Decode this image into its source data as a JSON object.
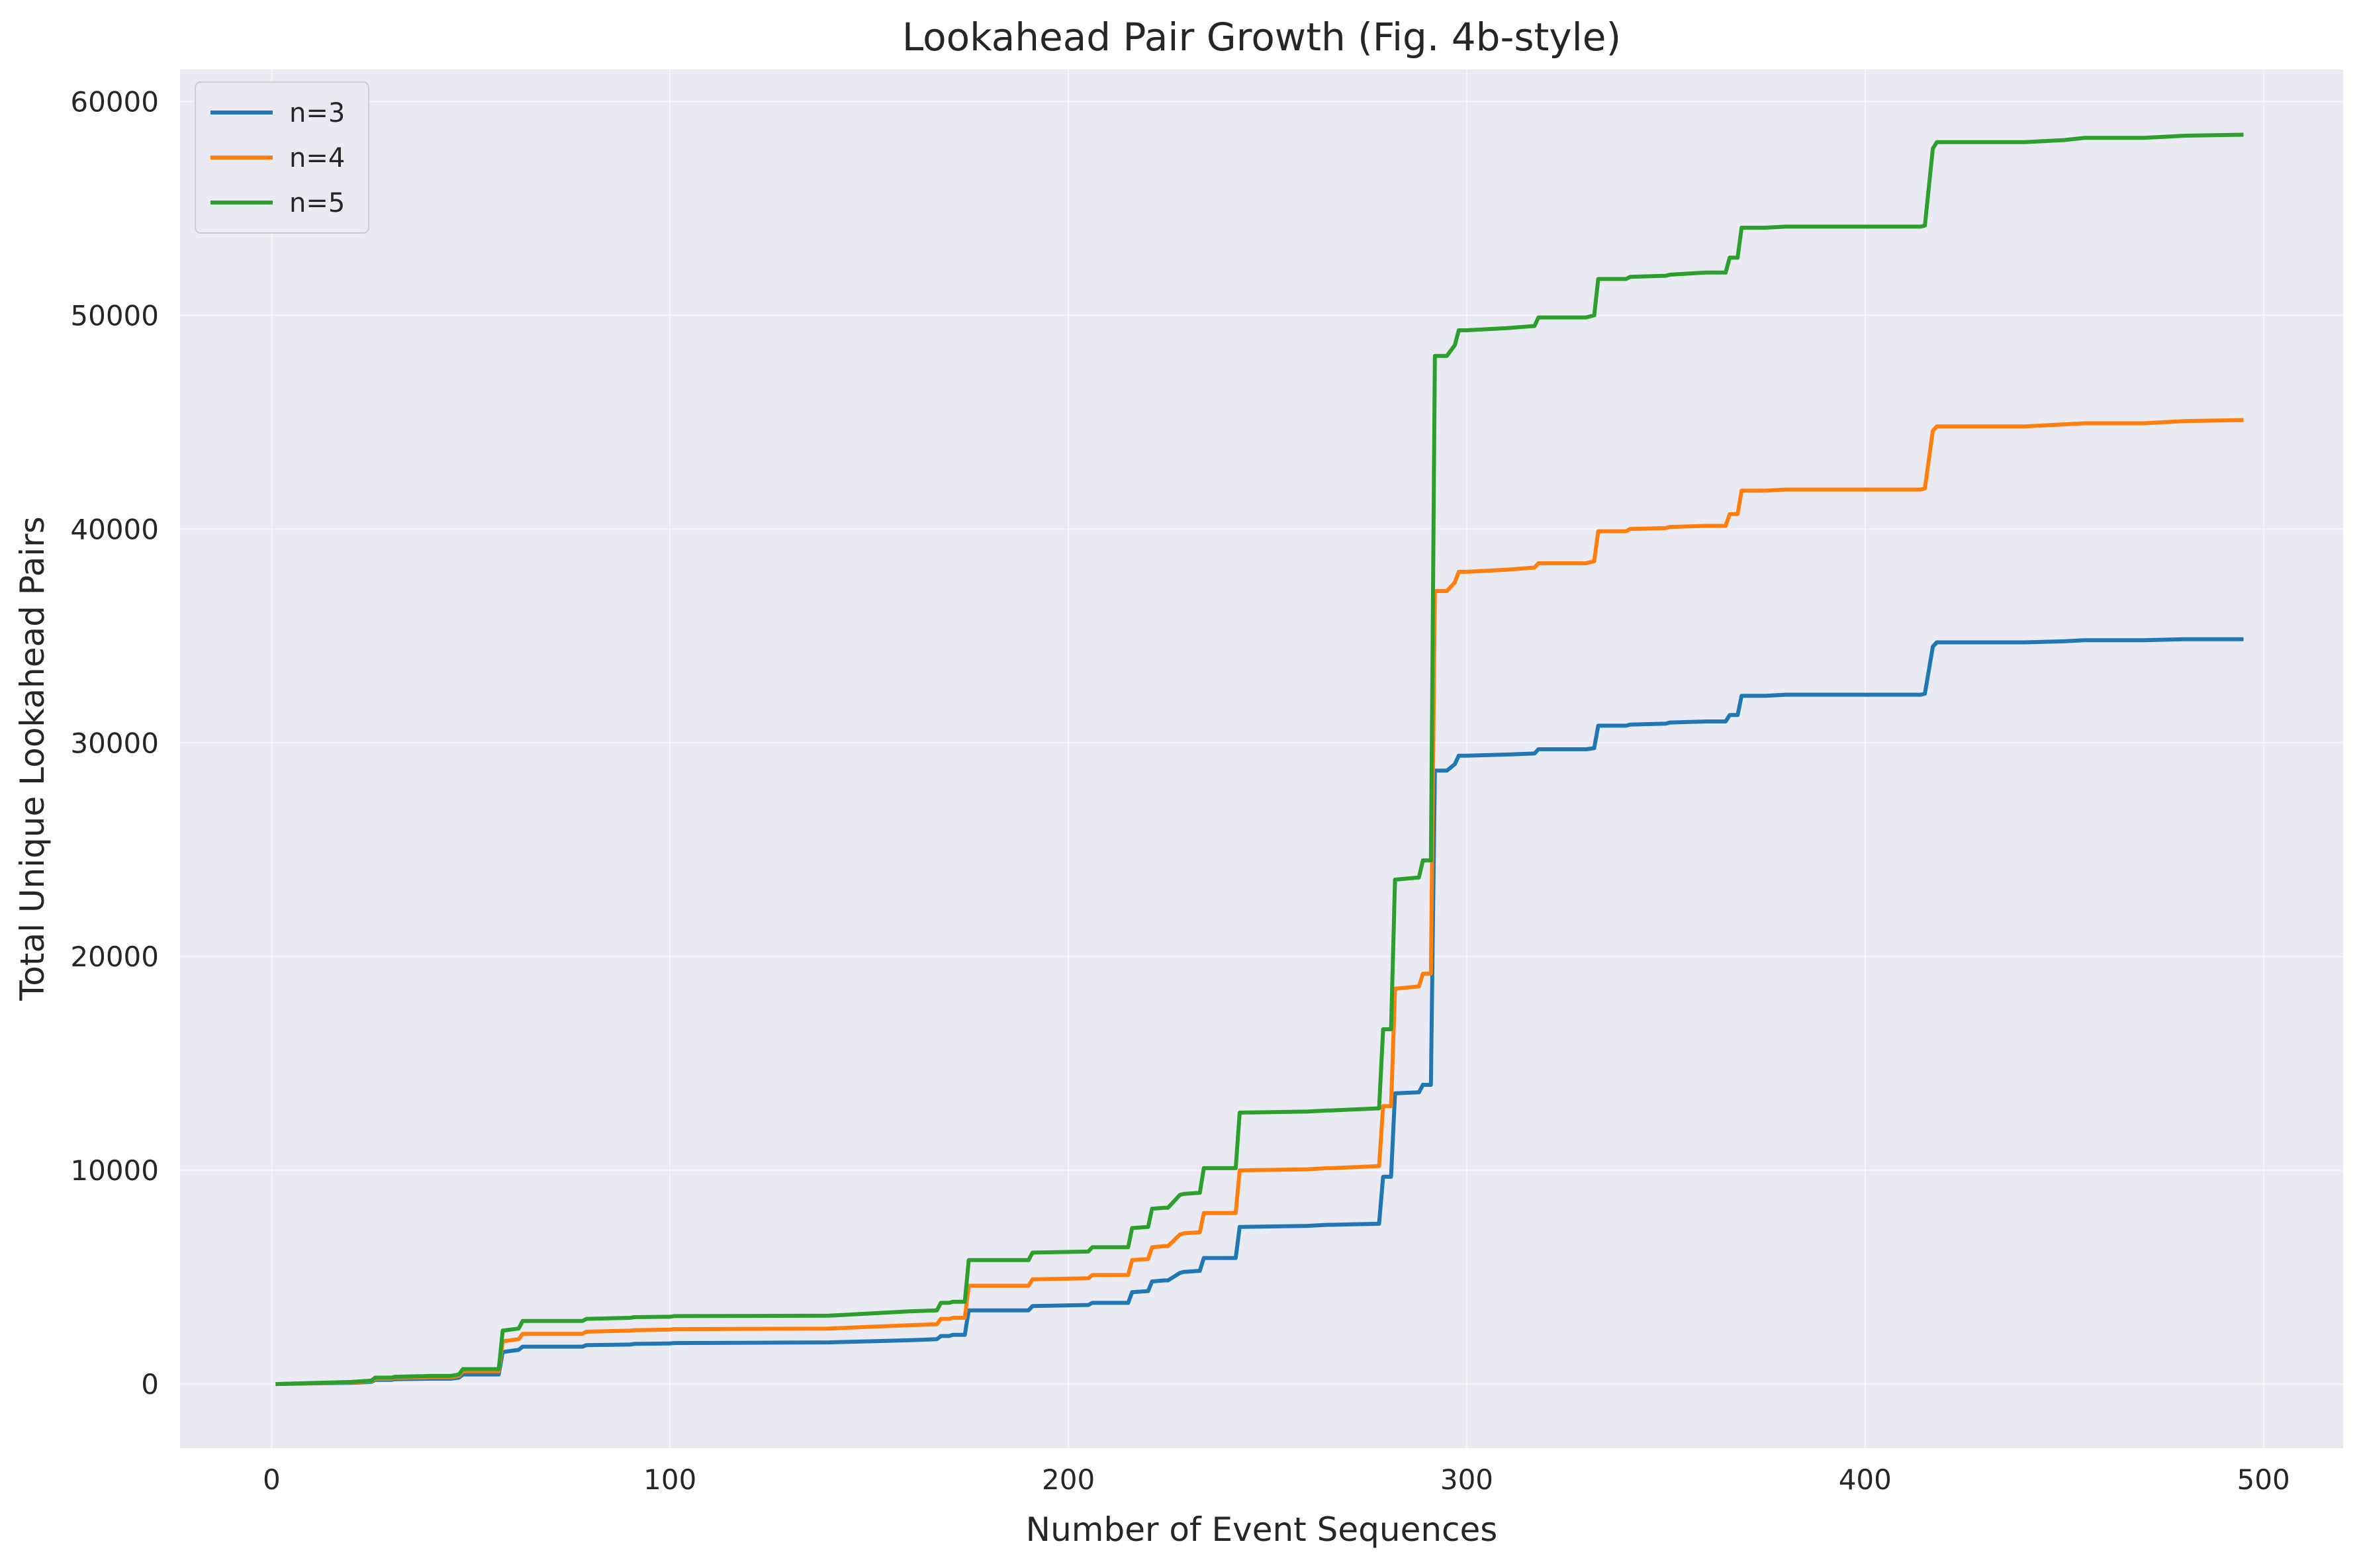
{
  "chart_data": {
    "type": "line",
    "title": "Lookahead Pair Growth (Fig. 4b-style)",
    "xlabel": "Number of Event Sequences",
    "ylabel": "Total Unique Lookahead Pairs",
    "xlim": [
      -23,
      520
    ],
    "ylim": [
      -3000,
      61500
    ],
    "xticks": [
      0,
      100,
      200,
      300,
      400,
      500
    ],
    "yticks": [
      0,
      10000,
      20000,
      30000,
      40000,
      50000,
      60000
    ],
    "grid": true,
    "legend_position": "top-left",
    "background": "#eaeaf2",
    "series": [
      {
        "name": "n=3",
        "color": "#1f77b4",
        "x": [
          1,
          10,
          20,
          25,
          26,
          30,
          31,
          40,
          45,
          47,
          48,
          57,
          58,
          62,
          63,
          78,
          79,
          90,
          91,
          100,
          101,
          140,
          150,
          160,
          167,
          168,
          170,
          171,
          174,
          175,
          190,
          191,
          205,
          206,
          215,
          216,
          220,
          221,
          224,
          225,
          228,
          229,
          233,
          234,
          242,
          243,
          260,
          265,
          266,
          278,
          279,
          281,
          282,
          288,
          289,
          291,
          292,
          294,
          295,
          297,
          298,
          300,
          310,
          317,
          318,
          330,
          332,
          333,
          340,
          341,
          350,
          351,
          360,
          365,
          366,
          368,
          369,
          375,
          380,
          410,
          414,
          415,
          417,
          418,
          420,
          440,
          450,
          455,
          470,
          480,
          495
        ],
        "y": [
          0,
          30,
          60,
          100,
          200,
          200,
          230,
          250,
          250,
          300,
          450,
          450,
          1500,
          1600,
          1750,
          1750,
          1820,
          1850,
          1880,
          1900,
          1920,
          1950,
          2000,
          2050,
          2100,
          2250,
          2250,
          2300,
          2300,
          3450,
          3450,
          3650,
          3700,
          3800,
          3800,
          4300,
          4350,
          4800,
          4850,
          4850,
          5200,
          5250,
          5300,
          5900,
          5900,
          7350,
          7400,
          7450,
          7450,
          7500,
          9700,
          9700,
          13600,
          13650,
          14000,
          14000,
          28700,
          28700,
          28700,
          29000,
          29400,
          29400,
          29450,
          29500,
          29700,
          29700,
          29750,
          30800,
          30800,
          30850,
          30900,
          30950,
          31000,
          31000,
          31300,
          31300,
          32200,
          32200,
          32250,
          32250,
          32250,
          32300,
          34500,
          34700,
          34700,
          34700,
          34750,
          34800,
          34800,
          34850,
          34850
        ]
      },
      {
        "name": "n=4",
        "color": "#ff7f0e",
        "x": [
          1,
          10,
          20,
          25,
          26,
          30,
          31,
          40,
          45,
          47,
          48,
          57,
          58,
          62,
          63,
          78,
          79,
          90,
          91,
          100,
          101,
          140,
          150,
          160,
          167,
          168,
          170,
          171,
          174,
          175,
          190,
          191,
          205,
          206,
          215,
          216,
          220,
          221,
          224,
          225,
          228,
          229,
          233,
          234,
          242,
          243,
          260,
          265,
          266,
          278,
          279,
          281,
          282,
          288,
          289,
          291,
          292,
          294,
          295,
          297,
          298,
          300,
          310,
          317,
          318,
          330,
          332,
          333,
          340,
          341,
          350,
          351,
          360,
          365,
          366,
          368,
          369,
          375,
          380,
          410,
          414,
          415,
          417,
          418,
          420,
          440,
          450,
          455,
          470,
          480,
          495
        ],
        "y": [
          0,
          40,
          80,
          130,
          250,
          250,
          290,
          320,
          320,
          380,
          600,
          600,
          2000,
          2100,
          2350,
          2350,
          2450,
          2500,
          2520,
          2550,
          2570,
          2600,
          2680,
          2750,
          2800,
          3050,
          3050,
          3100,
          3100,
          4600,
          4600,
          4900,
          4950,
          5100,
          5100,
          5800,
          5850,
          6400,
          6450,
          6450,
          7000,
          7050,
          7100,
          8000,
          8000,
          10000,
          10050,
          10100,
          10100,
          10200,
          13000,
          13000,
          18500,
          18600,
          19200,
          19200,
          37100,
          37100,
          37100,
          37500,
          38000,
          38000,
          38100,
          38200,
          38400,
          38400,
          38500,
          39900,
          39900,
          40000,
          40050,
          40100,
          40150,
          40150,
          40700,
          40700,
          41800,
          41800,
          41850,
          41850,
          41850,
          41900,
          44600,
          44800,
          44800,
          44800,
          44900,
          44950,
          44950,
          45050,
          45100
        ]
      },
      {
        "name": "n=5",
        "color": "#2ca02c",
        "x": [
          1,
          10,
          20,
          25,
          26,
          30,
          31,
          40,
          45,
          47,
          48,
          57,
          58,
          62,
          63,
          78,
          79,
          90,
          91,
          100,
          101,
          140,
          150,
          160,
          167,
          168,
          170,
          171,
          174,
          175,
          190,
          191,
          205,
          206,
          215,
          216,
          220,
          221,
          224,
          225,
          228,
          229,
          233,
          234,
          242,
          243,
          260,
          265,
          266,
          278,
          279,
          281,
          282,
          288,
          289,
          291,
          292,
          294,
          295,
          297,
          298,
          300,
          310,
          317,
          318,
          330,
          332,
          333,
          340,
          341,
          350,
          351,
          360,
          365,
          366,
          368,
          369,
          375,
          380,
          410,
          414,
          415,
          417,
          418,
          420,
          440,
          450,
          455,
          470,
          480,
          495
        ],
        "y": [
          0,
          50,
          100,
          160,
          300,
          300,
          340,
          380,
          380,
          450,
          700,
          700,
          2500,
          2600,
          2950,
          2950,
          3050,
          3100,
          3130,
          3150,
          3180,
          3200,
          3300,
          3400,
          3450,
          3800,
          3800,
          3850,
          3850,
          5800,
          5800,
          6150,
          6200,
          6400,
          6400,
          7300,
          7350,
          8200,
          8250,
          8250,
          8850,
          8900,
          8950,
          10100,
          10100,
          12700,
          12750,
          12800,
          12800,
          12900,
          16600,
          16600,
          23600,
          23700,
          24500,
          24500,
          48100,
          48100,
          48100,
          48600,
          49300,
          49300,
          49400,
          49500,
          49900,
          49900,
          50000,
          51700,
          51700,
          51800,
          51850,
          51900,
          52000,
          52000,
          52700,
          52700,
          54100,
          54100,
          54150,
          54150,
          54150,
          54200,
          57800,
          58100,
          58100,
          58100,
          58200,
          58300,
          58300,
          58400,
          58450
        ]
      }
    ]
  }
}
